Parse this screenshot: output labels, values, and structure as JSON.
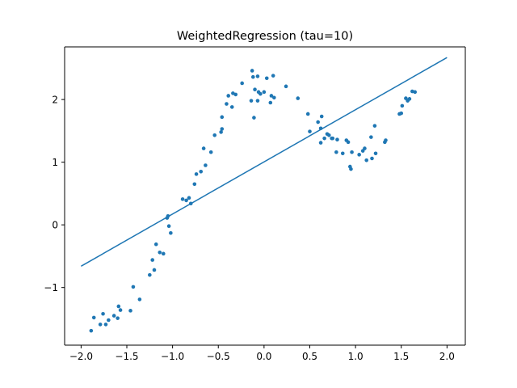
{
  "chart_data": {
    "type": "scatter",
    "title": "WeightedRegression (tau=10)",
    "xlabel": "",
    "ylabel": "",
    "xlim": [
      -2.18,
      2.2
    ],
    "ylim": [
      -1.92,
      2.84
    ],
    "grid": false,
    "legend": "none",
    "x_ticks": [
      -2.0,
      -1.5,
      -1.0,
      -0.5,
      0.0,
      0.5,
      1.0,
      1.5,
      2.0
    ],
    "x_tick_labels": [
      "−2.0",
      "−1.5",
      "−1.0",
      "−0.5",
      "0.0",
      "0.5",
      "1.0",
      "1.5",
      "2.0"
    ],
    "y_ticks": [
      -1,
      0,
      1,
      2
    ],
    "y_tick_labels": [
      "−1",
      "0",
      "1",
      "2"
    ],
    "series": [
      {
        "kind": "scatter",
        "color": "#1f77b4",
        "points": [
          [
            -1.89,
            -1.69
          ],
          [
            -1.86,
            -1.48
          ],
          [
            -1.79,
            -1.59
          ],
          [
            -1.76,
            -1.42
          ],
          [
            -1.73,
            -1.59
          ],
          [
            -1.7,
            -1.52
          ],
          [
            -1.64,
            -1.45
          ],
          [
            -1.6,
            -1.49
          ],
          [
            -1.59,
            -1.3
          ],
          [
            -1.57,
            -1.36
          ],
          [
            -1.46,
            -1.37
          ],
          [
            -1.43,
            -0.99
          ],
          [
            -1.36,
            -1.19
          ],
          [
            -1.25,
            -0.8
          ],
          [
            -1.22,
            -0.56
          ],
          [
            -1.2,
            -0.72
          ],
          [
            -1.18,
            -0.31
          ],
          [
            -1.14,
            -0.44
          ],
          [
            -1.1,
            -0.46
          ],
          [
            -1.06,
            0.11
          ],
          [
            -1.05,
            0.14
          ],
          [
            -1.04,
            -0.02
          ],
          [
            -1.02,
            -0.13
          ],
          [
            -0.89,
            0.41
          ],
          [
            -0.85,
            0.39
          ],
          [
            -0.82,
            0.43
          ],
          [
            -0.8,
            0.34
          ],
          [
            -0.76,
            0.65
          ],
          [
            -0.74,
            0.81
          ],
          [
            -0.69,
            0.85
          ],
          [
            -0.66,
            1.22
          ],
          [
            -0.64,
            0.95
          ],
          [
            -0.58,
            1.16
          ],
          [
            -0.54,
            1.43
          ],
          [
            -0.47,
            1.48
          ],
          [
            -0.46,
            1.53
          ],
          [
            -0.46,
            1.72
          ],
          [
            -0.41,
            1.93
          ],
          [
            -0.39,
            2.06
          ],
          [
            -0.35,
            1.88
          ],
          [
            -0.34,
            2.1
          ],
          [
            -0.31,
            2.08
          ],
          [
            -0.24,
            2.26
          ],
          [
            -0.14,
            1.98
          ],
          [
            -0.13,
            2.46
          ],
          [
            -0.12,
            2.36
          ],
          [
            -0.11,
            1.71
          ],
          [
            -0.1,
            2.16
          ],
          [
            -0.07,
            1.98
          ],
          [
            -0.07,
            2.37
          ],
          [
            -0.06,
            2.12
          ],
          [
            -0.04,
            2.09
          ],
          [
            0.0,
            2.12
          ],
          [
            0.03,
            2.34
          ],
          [
            0.07,
            1.95
          ],
          [
            0.08,
            2.06
          ],
          [
            0.1,
            2.38
          ],
          [
            0.11,
            2.03
          ],
          [
            0.24,
            2.21
          ],
          [
            0.37,
            2.02
          ],
          [
            0.48,
            1.77
          ],
          [
            0.5,
            1.49
          ],
          [
            0.59,
            1.64
          ],
          [
            0.62,
            1.31
          ],
          [
            0.62,
            1.54
          ],
          [
            0.63,
            1.73
          ],
          [
            0.66,
            1.38
          ],
          [
            0.69,
            1.45
          ],
          [
            0.71,
            1.43
          ],
          [
            0.74,
            1.38
          ],
          [
            0.75,
            1.38
          ],
          [
            0.79,
            1.16
          ],
          [
            0.8,
            1.36
          ],
          [
            0.86,
            1.14
          ],
          [
            0.9,
            1.35
          ],
          [
            0.92,
            1.32
          ],
          [
            0.94,
            0.93
          ],
          [
            0.95,
            0.89
          ],
          [
            0.96,
            1.16
          ],
          [
            1.04,
            1.12
          ],
          [
            1.08,
            1.18
          ],
          [
            1.1,
            1.22
          ],
          [
            1.12,
            1.03
          ],
          [
            1.17,
            1.4
          ],
          [
            1.18,
            1.06
          ],
          [
            1.21,
            1.58
          ],
          [
            1.22,
            1.14
          ],
          [
            1.32,
            1.32
          ],
          [
            1.33,
            1.35
          ],
          [
            1.48,
            1.77
          ],
          [
            1.5,
            1.78
          ],
          [
            1.51,
            1.9
          ],
          [
            1.55,
            2.02
          ],
          [
            1.57,
            1.98
          ],
          [
            1.59,
            2.01
          ],
          [
            1.62,
            2.13
          ],
          [
            1.65,
            2.12
          ]
        ]
      },
      {
        "kind": "line",
        "color": "#1f77b4",
        "points": [
          [
            -2.0,
            -0.66
          ],
          [
            2.0,
            2.67
          ]
        ]
      }
    ]
  }
}
